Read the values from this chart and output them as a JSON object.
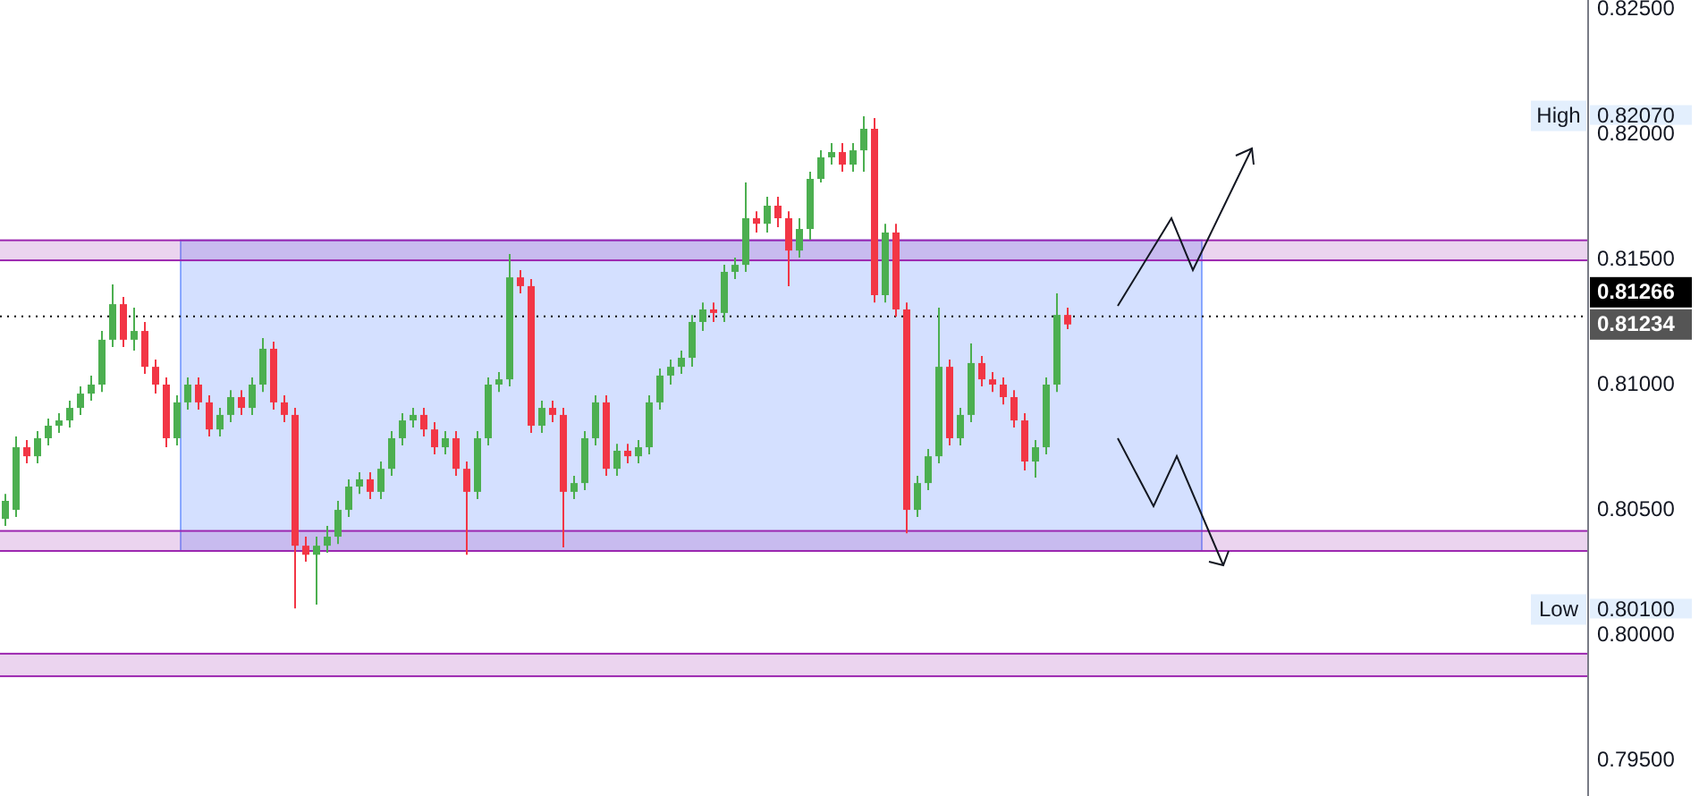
{
  "chart_data": {
    "type": "candlestick",
    "categories": [
      null,
      null,
      null,
      null,
      null,
      null,
      null,
      null,
      null,
      null,
      null,
      null,
      null,
      null,
      null,
      null,
      null,
      null,
      null,
      null,
      null,
      null,
      null,
      null,
      null,
      null,
      null,
      null,
      null,
      null,
      null,
      null,
      null,
      null,
      null,
      null,
      null,
      null,
      null,
      null,
      null,
      null,
      null,
      null,
      null,
      null,
      null,
      null,
      null,
      null,
      null,
      null,
      null,
      null,
      null,
      null,
      null,
      null,
      null,
      null,
      null,
      null,
      null,
      null,
      null,
      null,
      null,
      null,
      null,
      null,
      null,
      null,
      null,
      null,
      null,
      null,
      null,
      null,
      null,
      null,
      null,
      null,
      null,
      null,
      null,
      null,
      null,
      null,
      null,
      null,
      null,
      null,
      null,
      null,
      null,
      null,
      null,
      null,
      null,
      null,
      null,
      null,
      null,
      null,
      null,
      null,
      null,
      null,
      null,
      null,
      null,
      null,
      null,
      null,
      null,
      null,
      null,
      null,
      null,
      null,
      null,
      null,
      null,
      null,
      null,
      null,
      null,
      null,
      null,
      null,
      null,
      null,
      null,
      null,
      null,
      null,
      null,
      null,
      null,
      null,
      null,
      null,
      null,
      null,
      null,
      null,
      null,
      null
    ],
    "ohlc": [
      [
        0.80458,
        0.80558,
        0.8043,
        0.8053
      ],
      [
        0.80494,
        0.80787,
        0.80466,
        0.80744
      ],
      [
        0.80744,
        0.80773,
        0.8068,
        0.80708
      ],
      [
        0.80708,
        0.80808,
        0.8068,
        0.8078
      ],
      [
        0.8078,
        0.80858,
        0.80751,
        0.8083
      ],
      [
        0.8083,
        0.8088,
        0.80801,
        0.80851
      ],
      [
        0.80851,
        0.8093,
        0.80823,
        0.80901
      ],
      [
        0.80901,
        0.80987,
        0.80873,
        0.80958
      ],
      [
        0.80958,
        0.8103,
        0.8093,
        0.80994
      ],
      [
        0.80994,
        0.81208,
        0.80965,
        0.81173
      ],
      [
        0.81173,
        0.81394,
        0.81144,
        0.81315
      ],
      [
        0.81315,
        0.81344,
        0.81144,
        0.81173
      ],
      [
        0.81173,
        0.81301,
        0.8113,
        0.81208
      ],
      [
        0.81208,
        0.81244,
        0.81037,
        0.81065
      ],
      [
        0.81065,
        0.81094,
        0.80958,
        0.80994
      ],
      [
        0.80994,
        0.81023,
        0.80744,
        0.8078
      ],
      [
        0.8078,
        0.80951,
        0.80751,
        0.80923
      ],
      [
        0.80923,
        0.81023,
        0.80894,
        0.80994
      ],
      [
        0.80994,
        0.81023,
        0.80894,
        0.80923
      ],
      [
        0.80923,
        0.80951,
        0.80787,
        0.80815
      ],
      [
        0.80815,
        0.80901,
        0.80787,
        0.80873
      ],
      [
        0.80873,
        0.80972,
        0.80844,
        0.80944
      ],
      [
        0.80944,
        0.80972,
        0.80873,
        0.80901
      ],
      [
        0.80901,
        0.81023,
        0.80873,
        0.80994
      ],
      [
        0.80994,
        0.8118,
        0.80965,
        0.81137
      ],
      [
        0.81137,
        0.81165,
        0.80894,
        0.80923
      ],
      [
        0.80923,
        0.80951,
        0.80844,
        0.80873
      ],
      [
        0.80873,
        0.80901,
        0.80101,
        0.80351
      ],
      [
        0.80351,
        0.80387,
        0.80287,
        0.80315
      ],
      [
        0.80315,
        0.80387,
        0.80116,
        0.80351
      ],
      [
        0.80351,
        0.8043,
        0.80323,
        0.80387
      ],
      [
        0.80387,
        0.8053,
        0.80358,
        0.80494
      ],
      [
        0.80494,
        0.80616,
        0.80466,
        0.80587
      ],
      [
        0.80587,
        0.80644,
        0.80558,
        0.80616
      ],
      [
        0.80616,
        0.80644,
        0.80537,
        0.80566
      ],
      [
        0.80566,
        0.80687,
        0.80537,
        0.80658
      ],
      [
        0.80658,
        0.80808,
        0.8063,
        0.8078
      ],
      [
        0.8078,
        0.8088,
        0.80751,
        0.80851
      ],
      [
        0.80851,
        0.80901,
        0.80823,
        0.80873
      ],
      [
        0.80873,
        0.80901,
        0.80787,
        0.80815
      ],
      [
        0.80815,
        0.80844,
        0.80716,
        0.80744
      ],
      [
        0.80744,
        0.80808,
        0.80716,
        0.8078
      ],
      [
        0.8078,
        0.80808,
        0.8063,
        0.80658
      ],
      [
        0.80658,
        0.80687,
        0.80315,
        0.80566
      ],
      [
        0.80566,
        0.80808,
        0.80537,
        0.8078
      ],
      [
        0.8078,
        0.81023,
        0.80751,
        0.80994
      ],
      [
        0.80994,
        0.81044,
        0.80965,
        0.81015
      ],
      [
        0.81015,
        0.81515,
        0.80987,
        0.81422
      ],
      [
        0.81422,
        0.81451,
        0.81358,
        0.81387
      ],
      [
        0.81387,
        0.81415,
        0.80801,
        0.8083
      ],
      [
        0.8083,
        0.8093,
        0.80801,
        0.80901
      ],
      [
        0.80901,
        0.8093,
        0.80844,
        0.80873
      ],
      [
        0.80873,
        0.80901,
        0.80344,
        0.80566
      ],
      [
        0.80566,
        0.8063,
        0.80537,
        0.80601
      ],
      [
        0.80601,
        0.80808,
        0.80573,
        0.8078
      ],
      [
        0.8078,
        0.80951,
        0.80751,
        0.80923
      ],
      [
        0.80923,
        0.80951,
        0.8063,
        0.80658
      ],
      [
        0.80658,
        0.80758,
        0.8063,
        0.8073
      ],
      [
        0.8073,
        0.80758,
        0.8068,
        0.80708
      ],
      [
        0.80708,
        0.80773,
        0.8068,
        0.80744
      ],
      [
        0.80744,
        0.80951,
        0.80716,
        0.80923
      ],
      [
        0.80923,
        0.81058,
        0.80894,
        0.8103
      ],
      [
        0.8103,
        0.81094,
        0.80994,
        0.81065
      ],
      [
        0.81065,
        0.8113,
        0.81037,
        0.81101
      ],
      [
        0.81101,
        0.81272,
        0.81065,
        0.81244
      ],
      [
        0.81244,
        0.81322,
        0.81208,
        0.81294
      ],
      [
        0.81294,
        0.81322,
        0.81244,
        0.8128
      ],
      [
        0.8128,
        0.81472,
        0.81244,
        0.81444
      ],
      [
        0.81444,
        0.81501,
        0.81415,
        0.81472
      ],
      [
        0.81472,
        0.81801,
        0.81444,
        0.81658
      ],
      [
        0.81658,
        0.81686,
        0.81601,
        0.81636
      ],
      [
        0.81636,
        0.81744,
        0.81601,
        0.81708
      ],
      [
        0.81708,
        0.81744,
        0.81622,
        0.81658
      ],
      [
        0.81658,
        0.81686,
        0.81387,
        0.81529
      ],
      [
        0.81529,
        0.81658,
        0.81501,
        0.81615
      ],
      [
        0.81615,
        0.81844,
        0.81572,
        0.81815
      ],
      [
        0.81815,
        0.81929,
        0.81801,
        0.81901
      ],
      [
        0.81901,
        0.81958,
        0.81872,
        0.81922
      ],
      [
        0.81922,
        0.81958,
        0.81844,
        0.81872
      ],
      [
        0.81872,
        0.81958,
        0.81844,
        0.81929
      ],
      [
        0.81929,
        0.82065,
        0.81844,
        0.82015
      ],
      [
        0.82015,
        0.82058,
        0.81322,
        0.81351
      ],
      [
        0.81351,
        0.81636,
        0.81322,
        0.81601
      ],
      [
        0.81601,
        0.81636,
        0.81265,
        0.81294
      ],
      [
        0.81294,
        0.81322,
        0.80401,
        0.80494
      ],
      [
        0.80494,
        0.8063,
        0.80466,
        0.80601
      ],
      [
        0.80601,
        0.80737,
        0.80573,
        0.80708
      ],
      [
        0.80708,
        0.81301,
        0.8068,
        0.81065
      ],
      [
        0.81065,
        0.81094,
        0.80751,
        0.8078
      ],
      [
        0.8078,
        0.80901,
        0.80751,
        0.80873
      ],
      [
        0.80873,
        0.81158,
        0.80844,
        0.8108
      ],
      [
        0.8108,
        0.81108,
        0.80987,
        0.81015
      ],
      [
        0.81015,
        0.81044,
        0.80965,
        0.80994
      ],
      [
        0.80994,
        0.81023,
        0.80915,
        0.80944
      ],
      [
        0.80944,
        0.80972,
        0.80823,
        0.80851
      ],
      [
        0.80851,
        0.8088,
        0.80651,
        0.80687
      ],
      [
        0.80687,
        0.80773,
        0.80623,
        0.80744
      ],
      [
        0.80744,
        0.81023,
        0.80716,
        0.80994
      ],
      [
        0.80994,
        0.81358,
        0.80965,
        0.81272
      ],
      [
        0.81272,
        0.81301,
        0.81215,
        0.81234
      ],
      null,
      null,
      null,
      null,
      null,
      null,
      null,
      null,
      null,
      null,
      null,
      null,
      null,
      null,
      null,
      null,
      null,
      null,
      null,
      null,
      null,
      null,
      null,
      null,
      null,
      null,
      null,
      null,
      null,
      null,
      null,
      null,
      null,
      null,
      null,
      null,
      null,
      null,
      null,
      null,
      null,
      null,
      null,
      null,
      null,
      null,
      null,
      null
    ],
    "colors": [
      "#4caf50",
      "#4caf50",
      "#f23645",
      "#4caf50",
      "#4caf50",
      "#4caf50",
      "#4caf50",
      "#4caf50",
      "#4caf50",
      "#4caf50",
      "#4caf50",
      "#f23645",
      "#4caf50",
      "#f23645",
      "#f23645",
      "#f23645",
      "#4caf50",
      "#4caf50",
      "#f23645",
      "#f23645",
      "#4caf50",
      "#4caf50",
      "#f23645",
      "#4caf50",
      "#4caf50",
      "#f23645",
      "#f23645",
      "#f23645",
      "#f23645",
      "#4caf50",
      "#4caf50",
      "#4caf50",
      "#4caf50",
      "#4caf50",
      "#f23645",
      "#4caf50",
      "#4caf50",
      "#4caf50",
      "#4caf50",
      "#f23645",
      "#f23645",
      "#4caf50",
      "#f23645",
      "#f23645",
      "#4caf50",
      "#4caf50",
      "#4caf50",
      "#4caf50",
      "#f23645",
      "#f23645",
      "#4caf50",
      "#f23645",
      "#f23645",
      "#4caf50",
      "#4caf50",
      "#4caf50",
      "#f23645",
      "#4caf50",
      "#f23645",
      "#4caf50",
      "#4caf50",
      "#4caf50",
      "#4caf50",
      "#4caf50",
      "#4caf50",
      "#4caf50",
      "#f23645",
      "#4caf50",
      "#4caf50",
      "#4caf50",
      "#f23645",
      "#4caf50",
      "#f23645",
      "#f23645",
      "#4caf50",
      "#4caf50",
      "#4caf50",
      "#4caf50",
      "#f23645",
      "#4caf50",
      "#4caf50",
      "#f23645",
      "#4caf50",
      "#f23645",
      "#f23645",
      "#4caf50",
      "#4caf50",
      "#4caf50",
      "#f23645",
      "#4caf50",
      "#4caf50",
      "#f23645",
      "#f23645",
      "#f23645",
      "#f23645",
      "#f23645",
      "#4caf50",
      "#4caf50",
      "#4caf50",
      "#f23645",
      null,
      null,
      null,
      null,
      null,
      null,
      null,
      null,
      null,
      null,
      null,
      null,
      null,
      null,
      null,
      null,
      null,
      null,
      null,
      null,
      null,
      null,
      null,
      null,
      null,
      null,
      null,
      null,
      null,
      null,
      null,
      null,
      null,
      null,
      null,
      null,
      null,
      null,
      null,
      null,
      null,
      null,
      null,
      null,
      null,
      null,
      null,
      null
    ],
    "ylim": [
      0.79352,
      0.82529
    ],
    "yticks": [
      {
        "value": 0.795,
        "label": "0.79500"
      },
      {
        "value": 0.8,
        "label": "0.80000"
      },
      {
        "value": 0.805,
        "label": "0.80500"
      },
      {
        "value": 0.81,
        "label": "0.81000"
      },
      {
        "value": 0.815,
        "label": "0.81500"
      },
      {
        "value": 0.82,
        "label": "0.82000"
      },
      {
        "value": 0.825,
        "label": "0.82500"
      }
    ],
    "tick_labels": "y",
    "bands": [
      {
        "axis": "y",
        "from": 0.8149,
        "to": 0.8157,
        "color": "#9c27b0"
      },
      {
        "axis": "y",
        "from": 0.8033,
        "to": 0.8041,
        "color": "#9c27b0"
      },
      {
        "axis": "y",
        "from": 0.7983,
        "to": 0.7992,
        "color": "#9c27b0"
      }
    ],
    "ref_lines": [
      {
        "axis": "y",
        "value": 0.81266,
        "label": "0.81266",
        "color": "#000000",
        "line_style": "dotted"
      }
    ],
    "annotations": [
      "0.81234",
      {
        "text": "High",
        "y": 0.8207
      },
      "0.82070",
      {
        "text": "Low",
        "y": 0.801
      },
      "0.80100"
    ]
  }
}
